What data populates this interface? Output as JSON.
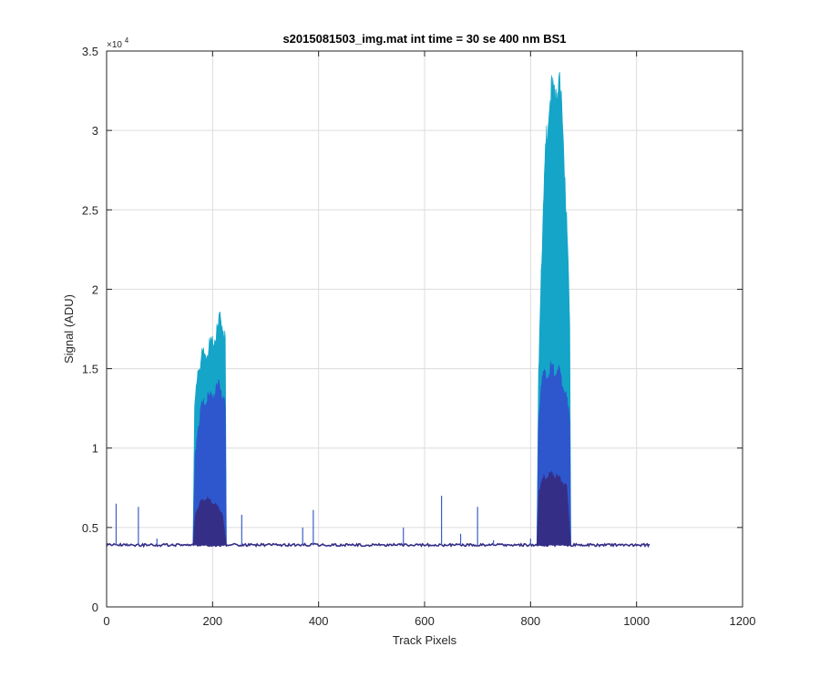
{
  "chart_data": {
    "type": "area",
    "title": "s2015081503_img.mat int time = 30 se  400 nm BS1",
    "xlabel": "Track Pixels",
    "ylabel": "Signal (ADU)",
    "y_exponent_label": "×10",
    "y_exponent_power": "4",
    "xlim": [
      0,
      1200
    ],
    "ylim": [
      0,
      35000
    ],
    "x_ticks": [
      0,
      200,
      400,
      600,
      800,
      1000,
      1200
    ],
    "x_tick_labels": [
      "0",
      "200",
      "400",
      "600",
      "800",
      "1000",
      "1200"
    ],
    "y_ticks": [
      0,
      5000,
      10000,
      15000,
      20000,
      25000,
      30000,
      35000
    ],
    "y_tick_labels": [
      "0",
      "0.5",
      "1",
      "1.5",
      "2",
      "2.5",
      "3",
      "3.5"
    ],
    "grid": true,
    "baseline": 3900,
    "x_max": 1024,
    "series": [
      {
        "color": "#14a5c8",
        "peaks": [
          {
            "x": [
              163,
              166,
              172,
              180,
              190,
              200,
              208,
              214,
              220,
              224,
              226
            ],
            "y": [
              3900,
              12500,
              15200,
              16000,
              16400,
              17000,
              17500,
              18500,
              18000,
              17000,
              3900
            ]
          },
          {
            "x": [
              812,
              815,
              820,
              828,
              835,
              842,
              848,
              855,
              862,
              868,
              874,
              876
            ],
            "y": [
              3900,
              15000,
              22000,
              29000,
              32500,
              33200,
              33500,
              33000,
              30500,
              25000,
              18000,
              3900
            ]
          }
        ]
      },
      {
        "color": "#2e57cd",
        "peaks": [
          {
            "x": [
              163,
              167,
              172,
              180,
              190,
              200,
              208,
              214,
              220,
              224,
              226
            ],
            "y": [
              3900,
              9500,
              11500,
              12800,
              13300,
              13700,
              14000,
              14200,
              13600,
              12500,
              3900
            ]
          },
          {
            "x": [
              812,
              815,
              820,
              828,
              835,
              842,
              848,
              855,
              862,
              868,
              874,
              876
            ],
            "y": [
              3900,
              12000,
              14300,
              15000,
              15200,
              15300,
              15200,
              14900,
              14200,
              13300,
              12000,
              3900
            ]
          }
        ]
      },
      {
        "color": "#352e86",
        "peaks": [
          {
            "x": [
              163,
              168,
              178,
              188,
              198,
              208,
              218,
              226
            ],
            "y": [
              3900,
              6000,
              6700,
              6900,
              6700,
              6400,
              6000,
              3900
            ]
          },
          {
            "x": [
              812,
              816,
              825,
              840,
              855,
              868,
              876
            ],
            "y": [
              3900,
              7500,
              8200,
              8500,
              8200,
              7600,
              3900
            ]
          }
        ]
      }
    ],
    "spikes": [
      {
        "x": 18,
        "y": 6500
      },
      {
        "x": 60,
        "y": 6300
      },
      {
        "x": 95,
        "y": 4300
      },
      {
        "x": 255,
        "y": 5800
      },
      {
        "x": 370,
        "y": 5000
      },
      {
        "x": 390,
        "y": 6100
      },
      {
        "x": 560,
        "y": 5000
      },
      {
        "x": 632,
        "y": 7000
      },
      {
        "x": 668,
        "y": 4600
      },
      {
        "x": 700,
        "y": 6300
      },
      {
        "x": 730,
        "y": 4200
      },
      {
        "x": 800,
        "y": 4300
      }
    ]
  }
}
